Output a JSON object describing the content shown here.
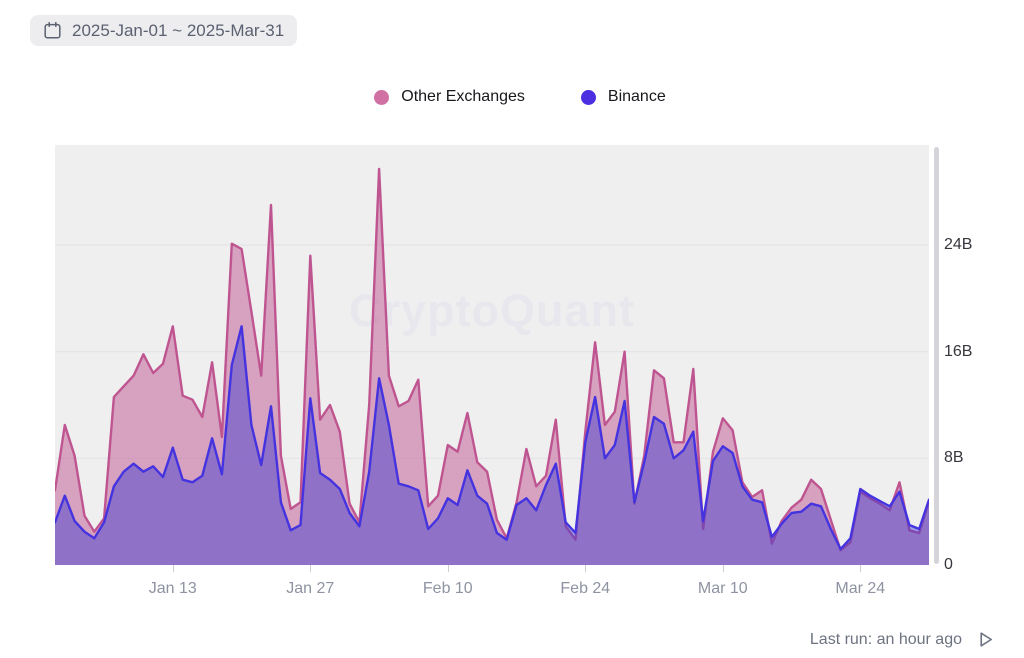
{
  "date_filter": {
    "label": "2025-Jan-01 ~ 2025-Mar-31"
  },
  "legend": [
    {
      "label": "Other Exchanges",
      "color": "#d170a3"
    },
    {
      "label": "Binance",
      "color": "#4b2fe0"
    }
  ],
  "watermark": "CryptoQuant",
  "footer": {
    "last_run": "Last run: an hour ago"
  },
  "chart_data": {
    "type": "area",
    "mode": "overlapping",
    "x_start": "2025-Jan-01",
    "x_end": "2025-Mar-31",
    "x_interval": "daily",
    "ylim": [
      0,
      31.5
    ],
    "unit": "B",
    "grid": "horizontal",
    "legend_position": "top-center",
    "x_ticks": [
      {
        "label": "Jan 13",
        "day": 12
      },
      {
        "label": "Jan 27",
        "day": 26
      },
      {
        "label": "Feb 10",
        "day": 40
      },
      {
        "label": "Feb 24",
        "day": 54
      },
      {
        "label": "Mar 10",
        "day": 68
      },
      {
        "label": "Mar 24",
        "day": 82
      }
    ],
    "y_ticks": [
      {
        "label": "24B",
        "value": 24
      },
      {
        "label": "16B",
        "value": 16
      },
      {
        "label": "8B",
        "value": 8
      },
      {
        "label": "0",
        "value": 0
      }
    ],
    "series": [
      {
        "name": "Other Exchanges",
        "line_color": "#bf5590",
        "fill_color": "#bf5590",
        "fill_opacity": 0.5,
        "values": [
          5.6,
          10.5,
          8.2,
          3.7,
          2.5,
          3.5,
          12.6,
          13.4,
          14.2,
          15.8,
          14.4,
          15.1,
          17.9,
          12.7,
          12.4,
          11.1,
          15.2,
          9.6,
          24.1,
          23.7,
          19.0,
          14.2,
          27.0,
          8.2,
          4.2,
          4.7,
          23.2,
          10.9,
          12.0,
          10.0,
          4.6,
          3.2,
          12.0,
          29.7,
          14.2,
          11.9,
          12.3,
          13.9,
          4.4,
          5.2,
          9.0,
          8.5,
          11.4,
          7.7,
          7.0,
          3.4,
          2.0,
          4.7,
          8.7,
          5.9,
          6.7,
          10.9,
          2.9,
          1.9,
          10.0,
          16.7,
          10.5,
          11.5,
          16.0,
          4.6,
          8.2,
          14.6,
          14.0,
          9.2,
          9.2,
          14.7,
          2.7,
          8.5,
          11.0,
          10.1,
          6.2,
          5.1,
          5.6,
          1.6,
          3.3,
          4.3,
          4.9,
          6.4,
          5.7,
          3.4,
          1.1,
          1.7,
          5.5,
          5.0,
          4.6,
          4.1,
          6.2,
          2.6,
          2.4,
          4.8
        ]
      },
      {
        "name": "Binance",
        "line_color": "#4433df",
        "fill_color": "#3737d2",
        "fill_opacity": 0.45,
        "values": [
          3.2,
          5.2,
          3.3,
          2.5,
          2.0,
          3.2,
          5.9,
          7.0,
          7.6,
          7.0,
          7.4,
          6.6,
          8.8,
          6.4,
          6.2,
          6.7,
          9.5,
          6.8,
          15.0,
          17.9,
          10.5,
          7.5,
          11.9,
          4.7,
          2.6,
          3.0,
          12.5,
          6.9,
          6.4,
          5.7,
          3.9,
          2.9,
          7.0,
          14.0,
          10.5,
          6.1,
          5.9,
          5.6,
          2.7,
          3.5,
          5.0,
          4.5,
          7.1,
          5.2,
          4.6,
          2.4,
          1.9,
          4.5,
          5.0,
          4.1,
          6.0,
          7.6,
          3.2,
          2.4,
          9.2,
          12.6,
          8.0,
          9.0,
          12.3,
          4.7,
          7.7,
          11.1,
          10.6,
          8.0,
          8.6,
          10.0,
          3.3,
          7.8,
          8.9,
          8.4,
          5.9,
          4.9,
          4.7,
          2.1,
          3.1,
          3.9,
          4.0,
          4.6,
          4.4,
          2.7,
          1.2,
          2.0,
          5.7,
          5.2,
          4.8,
          4.4,
          5.5,
          3.0,
          2.7,
          4.9
        ]
      }
    ],
    "style": {
      "plot_bg": "#efeff0",
      "gridline_color": "#e3e3e8",
      "watermark_color": "#e7e7ed"
    }
  }
}
